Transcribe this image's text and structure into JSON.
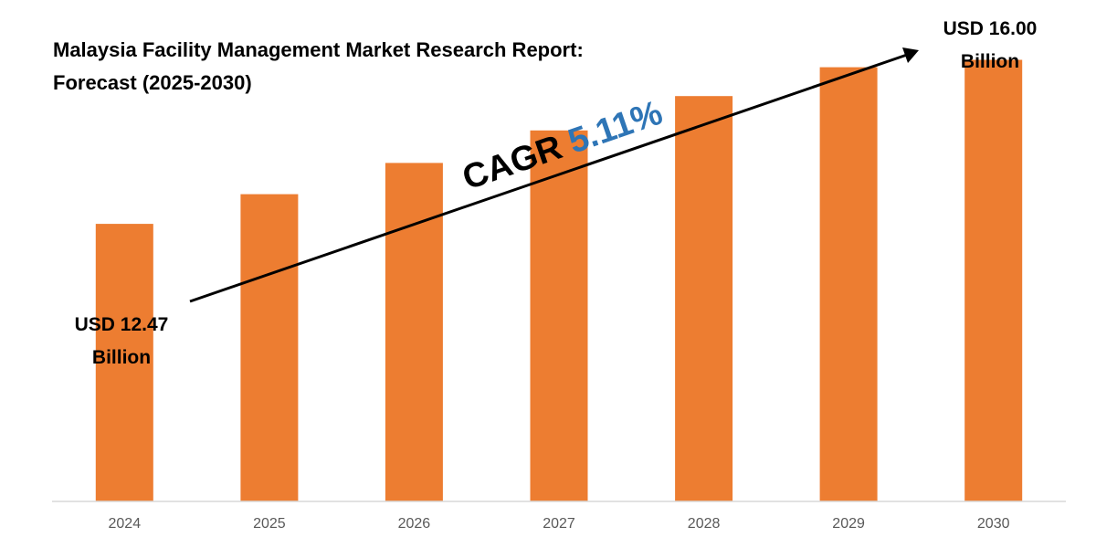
{
  "title_line1": "Malaysia Facility Management Market Research Report:",
  "title_line2": "Forecast (2025-2030)",
  "cagr_label": "CAGR ",
  "cagr_value": "5.11%",
  "start_label_line1": "USD 12.47",
  "start_label_line2": "Billion",
  "end_label_line1": "USD 16.00",
  "end_label_line2": "Billion",
  "colors": {
    "bar": "#ED7D31",
    "cagr_value": "#2E75B6",
    "arrow": "#000000",
    "axis": "#D9D9D9",
    "tick": "#595959"
  },
  "chart_data": {
    "type": "bar",
    "categories": [
      "2024",
      "2025",
      "2026",
      "2027",
      "2028",
      "2029",
      "2030"
    ],
    "values": [
      12.47,
      13.11,
      13.78,
      14.48,
      15.22,
      15.84,
      16.0
    ],
    "ylim": [
      6.5,
      16.5
    ],
    "grid": false,
    "legend": "none",
    "annotations": [
      "USD 12.47 Billion",
      "USD 16.00 Billion",
      "CAGR 5.11%"
    ]
  }
}
